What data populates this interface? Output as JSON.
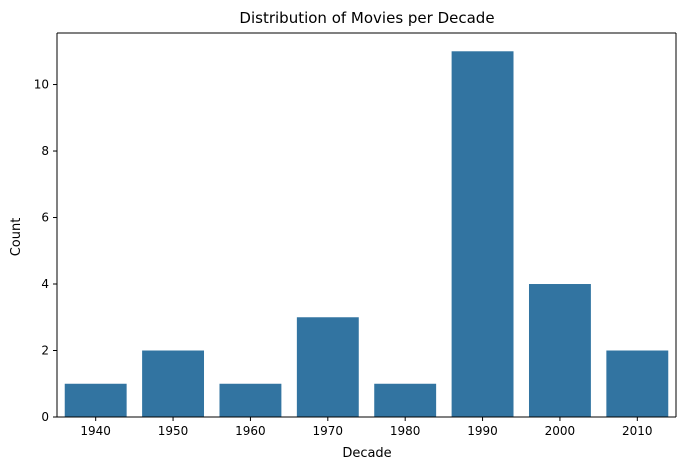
{
  "chart_data": {
    "type": "bar",
    "title": "Distribution of Movies per Decade",
    "xlabel": "Decade",
    "ylabel": "Count",
    "categories": [
      "1940",
      "1950",
      "1960",
      "1970",
      "1980",
      "1990",
      "2000",
      "2010"
    ],
    "values": [
      1,
      2,
      1,
      3,
      1,
      11,
      4,
      2
    ],
    "ylim": [
      0,
      11.55
    ],
    "yticks": [
      0,
      2,
      4,
      6,
      8,
      10
    ],
    "bar_color": "#3274a1",
    "grid": false,
    "legend": "none"
  }
}
